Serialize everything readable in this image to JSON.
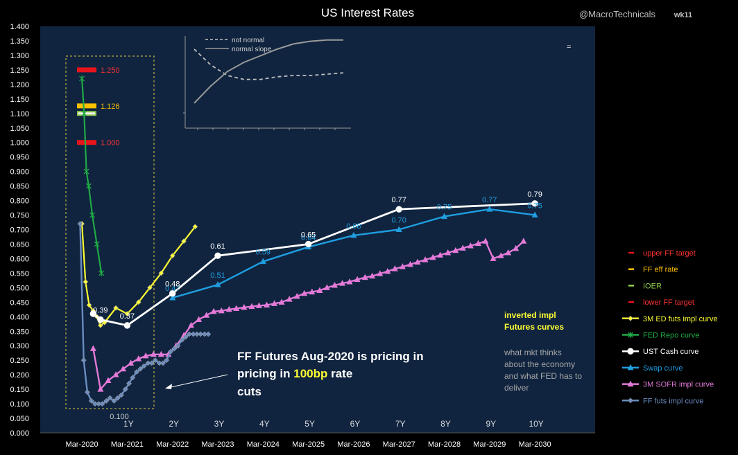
{
  "header": {
    "title": "US Interest Rates",
    "handle": "@MacroTechnicals",
    "week": "wk11"
  },
  "colors": {
    "plot_bg": "#10243f",
    "outer_bg": "#000000",
    "upper_ff": "#e8141b",
    "ff_eff": "#ffc000",
    "ioer": "#92d050",
    "lower_ff": "#e8141b",
    "ed": "#ffff33",
    "repo": "#1faa44",
    "ust": "#ffffff",
    "swap": "#1f9ee0",
    "sofr": "#e37ad8",
    "fffuts": "#6a8cc2",
    "annot_yellow": "#ffff33",
    "note_gray": "#bfbfbf"
  },
  "annotations": {
    "callout_pre": "FF Futures Aug-2020 is pricing in ",
    "callout_highlight": "100bp",
    "callout_post": " rate",
    "callout_last": "cuts",
    "inverted_line1": "inverted impl",
    "inverted_line2": "Futures curves",
    "note_line1": "what mkt thinks",
    "note_line2": "about  the economy",
    "note_line3": "and what FED has to",
    "note_line4": "deliver",
    "inset_legend_dashed": "not normal",
    "inset_legend_solid": "normal slope",
    "inset_equals": "="
  },
  "chart_data": {
    "type": "line",
    "y_axis": {
      "min": 0,
      "max": 1.4,
      "step": 0.05,
      "tick_labels": [
        "0.000",
        "0.050",
        "0.100",
        "0.150",
        "0.200",
        "0.250",
        "0.300",
        "0.350",
        "0.400",
        "0.450",
        "0.500",
        "0.550",
        "0.600",
        "0.650",
        "0.700",
        "0.750",
        "0.800",
        "0.850",
        "0.900",
        "0.950",
        "1.000",
        "1.050",
        "1.100",
        "1.150",
        "1.200",
        "1.250",
        "1.300",
        "1.350",
        "1.400"
      ]
    },
    "x_axis": {
      "min": 2019.25,
      "max": 2031.5,
      "date_ticks": [
        {
          "x": 2020.17,
          "label": "Mar-2020"
        },
        {
          "x": 2021.17,
          "label": "Mar-2021"
        },
        {
          "x": 2022.17,
          "label": "Mar-2022"
        },
        {
          "x": 2023.17,
          "label": "Mar-2023"
        },
        {
          "x": 2024.17,
          "label": "Mar-2024"
        },
        {
          "x": 2025.17,
          "label": "Mar-2025"
        },
        {
          "x": 2026.17,
          "label": "Mar-2026"
        },
        {
          "x": 2027.17,
          "label": "Mar-2027"
        },
        {
          "x": 2028.17,
          "label": "Mar-2028"
        },
        {
          "x": 2029.17,
          "label": "Mar-2029"
        },
        {
          "x": 2030.17,
          "label": "Mar-2030"
        }
      ],
      "tenor_labels": [
        {
          "x": 2021.17,
          "label": "1Y"
        },
        {
          "x": 2022.17,
          "label": "2Y"
        },
        {
          "x": 2023.17,
          "label": "3Y"
        },
        {
          "x": 2024.17,
          "label": "4Y"
        },
        {
          "x": 2025.17,
          "label": "5Y"
        },
        {
          "x": 2026.17,
          "label": "6Y"
        },
        {
          "x": 2027.17,
          "label": "7Y"
        },
        {
          "x": 2028.17,
          "label": "8Y"
        },
        {
          "x": 2029.17,
          "label": "9Y"
        },
        {
          "x": 2030.17,
          "label": "10Y"
        }
      ]
    },
    "legend": {
      "placement": "right",
      "entries": [
        {
          "name": "upper FF target",
          "key": "upper_ff",
          "style": "dash"
        },
        {
          "name": "FF eff rate",
          "key": "ff_eff",
          "style": "dash"
        },
        {
          "name": "IOER",
          "key": "ioer",
          "style": "dash"
        },
        {
          "name": "lower FF target",
          "key": "lower_ff",
          "style": "dash"
        },
        {
          "name": "3M ED futs impl curve",
          "key": "ed",
          "style": "diamond"
        },
        {
          "name": "FED Repo curve",
          "key": "repo",
          "style": "star"
        },
        {
          "name": "UST Cash curve",
          "key": "ust",
          "style": "circle"
        },
        {
          "name": "Swap curve",
          "key": "swap",
          "style": "triangle"
        },
        {
          "name": "3M SOFR impl curve",
          "key": "sofr",
          "style": "triangle"
        },
        {
          "name": "FF futs impl curve",
          "key": "fffuts",
          "style": "diamond"
        }
      ]
    },
    "policy_levels": [
      {
        "key": "upper_ff",
        "value": 1.25,
        "label": "1.250"
      },
      {
        "key": "ff_eff",
        "value": 1.126,
        "label": "1.126"
      },
      {
        "key": "ioer",
        "value": 1.1,
        "label": ""
      },
      {
        "key": "lower_ff",
        "value": 1.0,
        "label": "1.000"
      }
    ],
    "series": [
      {
        "key": "repo",
        "marker": "star",
        "x": [
          2020.17,
          2020.22,
          2020.27,
          2020.32,
          2020.4,
          2020.5,
          2020.6
        ],
        "y": [
          1.22,
          1.1,
          0.9,
          0.85,
          0.75,
          0.65,
          0.55
        ]
      },
      {
        "key": "ed",
        "marker": "diamond",
        "x": [
          2020.17,
          2020.25,
          2020.33,
          2020.42,
          2020.5,
          2020.58,
          2020.67,
          2020.92,
          2021.17,
          2021.42,
          2021.67,
          2021.92,
          2022.17,
          2022.42,
          2022.67
        ],
        "y": [
          0.72,
          0.52,
          0.44,
          0.42,
          0.4,
          0.37,
          0.38,
          0.43,
          0.41,
          0.45,
          0.5,
          0.55,
          0.61,
          0.66,
          0.71
        ]
      },
      {
        "key": "ust",
        "marker": "circle",
        "x": [
          2020.42,
          2020.58,
          2021.17,
          2022.17,
          2023.17,
          2025.17,
          2027.17,
          2030.17
        ],
        "y": [
          0.41,
          0.39,
          0.37,
          0.48,
          0.61,
          0.65,
          0.77,
          0.79
        ],
        "labels": [
          "",
          "0.39",
          "0.37",
          "0.48",
          "0.61",
          "0.65",
          "0.77",
          "0.79"
        ]
      },
      {
        "key": "swap",
        "marker": "triangle",
        "x": [
          2022.17,
          2023.17,
          2024.17,
          2025.17,
          2026.17,
          2027.17,
          2028.17,
          2029.17,
          2030.17
        ],
        "y": [
          0.465,
          0.51,
          0.59,
          0.64,
          0.68,
          0.7,
          0.745,
          0.77,
          0.75
        ],
        "labels": [
          "0.47",
          "0.51",
          "0.59",
          "0.64",
          "0.68",
          "0.70",
          "0.75",
          "0.77",
          "0.75"
        ]
      },
      {
        "key": "sofr",
        "marker": "triangle",
        "x": [
          2020.42,
          2020.58,
          2020.75,
          2020.92,
          2021.08,
          2021.25,
          2021.42,
          2021.58,
          2021.75,
          2021.92,
          2022.08,
          2022.25,
          2022.42,
          2022.58,
          2022.75,
          2022.92,
          2023.08,
          2023.25,
          2023.42,
          2023.58,
          2023.75,
          2023.92,
          2024.08,
          2024.25,
          2024.42,
          2024.58,
          2024.75,
          2024.92,
          2025.08,
          2025.25,
          2025.42,
          2025.58,
          2025.75,
          2025.92,
          2026.08,
          2026.25,
          2026.42,
          2026.58,
          2026.75,
          2026.92,
          2027.08,
          2027.25,
          2027.42,
          2027.58,
          2027.75,
          2027.92,
          2028.08,
          2028.25,
          2028.42,
          2028.58,
          2028.75,
          2028.92,
          2029.08,
          2029.25,
          2029.42,
          2029.58,
          2029.75,
          2029.92
        ],
        "y": [
          0.29,
          0.15,
          0.18,
          0.2,
          0.22,
          0.24,
          0.255,
          0.265,
          0.27,
          0.27,
          0.27,
          0.3,
          0.335,
          0.37,
          0.39,
          0.405,
          0.418,
          0.42,
          0.425,
          0.428,
          0.432,
          0.435,
          0.438,
          0.44,
          0.445,
          0.45,
          0.46,
          0.47,
          0.48,
          0.485,
          0.49,
          0.5,
          0.508,
          0.515,
          0.52,
          0.528,
          0.535,
          0.54,
          0.548,
          0.556,
          0.565,
          0.572,
          0.58,
          0.588,
          0.596,
          0.604,
          0.612,
          0.62,
          0.628,
          0.636,
          0.644,
          0.652,
          0.66,
          0.6,
          0.61,
          0.62,
          0.635,
          0.66
        ],
        "labels": []
      },
      {
        "key": "fffuts",
        "marker": "diamond",
        "x": [
          2020.13,
          2020.21,
          2020.29,
          2020.38,
          2020.46,
          2020.54,
          2020.62,
          2020.71,
          2020.79,
          2020.88,
          2020.96,
          2021.04,
          2021.13,
          2021.21,
          2021.29,
          2021.38,
          2021.46,
          2021.54,
          2021.63,
          2021.71,
          2021.79,
          2021.88,
          2021.96,
          2022.04,
          2022.13,
          2022.21,
          2022.29,
          2022.38,
          2022.46,
          2022.54,
          2022.63,
          2022.71,
          2022.79,
          2022.88,
          2022.96
        ],
        "y": [
          0.72,
          0.25,
          0.14,
          0.11,
          0.1,
          0.1,
          0.1,
          0.11,
          0.12,
          0.11,
          0.12,
          0.13,
          0.15,
          0.17,
          0.19,
          0.21,
          0.22,
          0.23,
          0.24,
          0.24,
          0.25,
          0.24,
          0.24,
          0.25,
          0.28,
          0.29,
          0.3,
          0.32,
          0.33,
          0.34,
          0.34,
          0.34,
          0.34,
          0.34,
          0.34
        ],
        "labels": []
      }
    ],
    "fffuts_min_label": "0.100",
    "inset": {
      "dashed_y": [
        0.3,
        0.24,
        0.2,
        0.185,
        0.185,
        0.195,
        0.2,
        0.2,
        0.205,
        0.21
      ],
      "solid_y": [
        0.095,
        0.16,
        0.215,
        0.25,
        0.275,
        0.3,
        0.32,
        0.33,
        0.335,
        0.335
      ]
    }
  }
}
